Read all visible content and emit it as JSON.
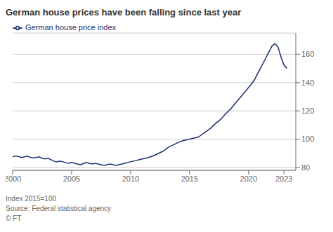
{
  "chart_data": {
    "type": "line",
    "title": "German house prices have been falling since last year",
    "annotations": [
      "Index 2015=100",
      "Source: Federal statistical agency",
      "© FT"
    ],
    "x": [
      2000.0,
      2000.25,
      2000.5,
      2000.75,
      2001.0,
      2001.25,
      2001.5,
      2001.75,
      2002.0,
      2002.25,
      2002.5,
      2002.75,
      2003.0,
      2003.25,
      2003.5,
      2003.75,
      2004.0,
      2004.25,
      2004.5,
      2004.75,
      2005.0,
      2005.25,
      2005.5,
      2005.75,
      2006.0,
      2006.25,
      2006.5,
      2006.75,
      2007.0,
      2007.25,
      2007.5,
      2007.75,
      2008.0,
      2008.25,
      2008.5,
      2008.75,
      2009.0,
      2009.25,
      2009.5,
      2009.75,
      2010.0,
      2010.25,
      2010.5,
      2010.75,
      2011.0,
      2011.25,
      2011.5,
      2011.75,
      2012.0,
      2012.25,
      2012.5,
      2012.75,
      2013.0,
      2013.25,
      2013.5,
      2013.75,
      2014.0,
      2014.25,
      2014.5,
      2014.75,
      2015.0,
      2015.25,
      2015.5,
      2015.75,
      2016.0,
      2016.25,
      2016.5,
      2016.75,
      2017.0,
      2017.25,
      2017.5,
      2017.75,
      2018.0,
      2018.25,
      2018.5,
      2018.75,
      2019.0,
      2019.25,
      2019.5,
      2019.75,
      2020.0,
      2020.25,
      2020.5,
      2020.75,
      2021.0,
      2021.25,
      2021.5,
      2021.75,
      2022.0,
      2022.25,
      2022.5,
      2022.75,
      2023.0,
      2023.25
    ],
    "series": [
      {
        "name": "German house price index",
        "color": "#1a2e6e",
        "values": [
          87.5,
          88.2,
          87.8,
          87.0,
          87.5,
          88.0,
          87.2,
          86.8,
          87.0,
          87.5,
          86.5,
          86.0,
          86.5,
          85.5,
          84.5,
          84.0,
          84.5,
          84.0,
          83.5,
          83.0,
          83.5,
          83.0,
          82.5,
          82.0,
          82.8,
          83.5,
          83.0,
          82.5,
          83.0,
          82.5,
          82.0,
          81.5,
          82.0,
          82.5,
          82.0,
          81.5,
          82.0,
          82.5,
          83.0,
          83.5,
          84.0,
          84.5,
          85.0,
          85.5,
          86.0,
          86.5,
          87.0,
          87.8,
          88.5,
          89.5,
          90.5,
          91.5,
          93.0,
          94.5,
          95.5,
          96.5,
          97.5,
          98.5,
          99.0,
          99.5,
          100.0,
          100.5,
          101.0,
          101.5,
          103.0,
          104.5,
          106.0,
          107.5,
          109.5,
          111.5,
          113.0,
          115.0,
          117.5,
          119.5,
          121.5,
          124.0,
          126.5,
          129.0,
          131.5,
          134.0,
          136.5,
          139.0,
          142.0,
          146.0,
          150.0,
          154.0,
          158.0,
          162.0,
          166.0,
          167.5,
          165.0,
          158.0,
          152.5,
          150.0
        ]
      }
    ],
    "xlim": [
      2000,
      2024.0
    ],
    "xticks": [
      2000,
      2005,
      2010,
      2015,
      2020,
      2023
    ],
    "ylim": [
      78,
      175
    ],
    "yticks": [
      80,
      100,
      120,
      140,
      160
    ],
    "grid": true,
    "legend": "upper left"
  }
}
